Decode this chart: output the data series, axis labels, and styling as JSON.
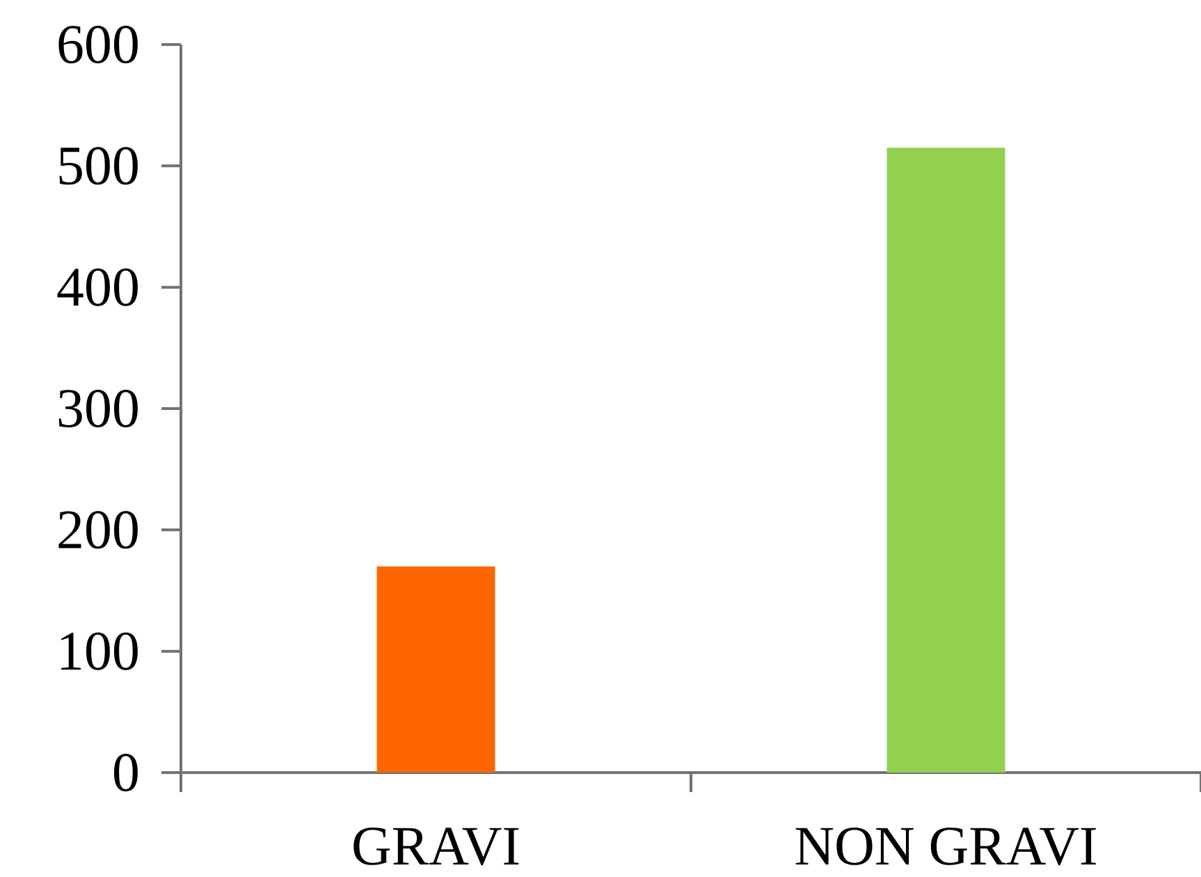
{
  "chart_data": {
    "type": "bar",
    "categories": [
      "GRAVI",
      "NON GRAVI"
    ],
    "values": [
      170,
      515
    ],
    "colors": [
      "#ff6600",
      "#92d050"
    ],
    "ylim": [
      0,
      600
    ],
    "yticks": [
      0,
      100,
      200,
      300,
      400,
      500,
      600
    ],
    "grid": false
  }
}
